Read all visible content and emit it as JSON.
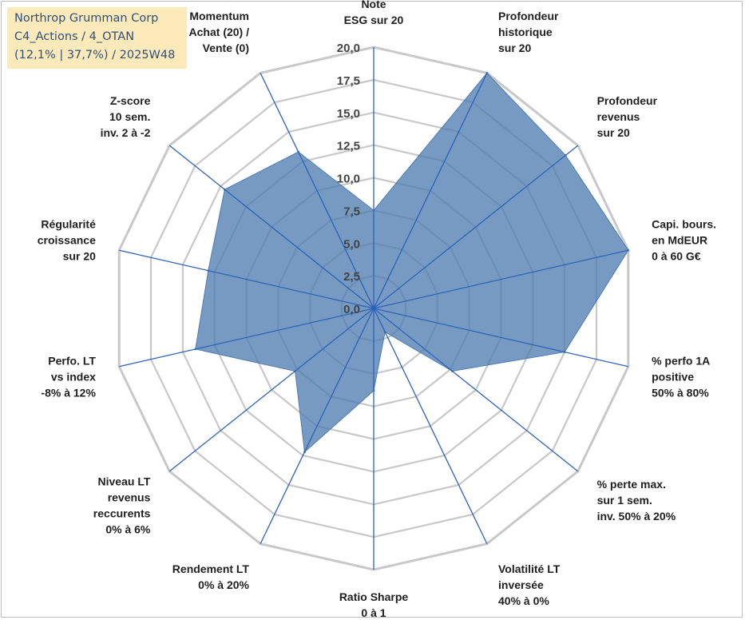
{
  "info": {
    "line1": "Northrop Grumman Corp",
    "line2": "C4_Actions / 4_OTAN",
    "line3": "(12,1% | 37,7%) / 2025W48"
  },
  "colors": {
    "fill": "#4f7db0",
    "axis": "#2e62b8",
    "grid": "#c8c8c8"
  },
  "chart_data": {
    "type": "radar",
    "title": "",
    "rmin": 0,
    "rmax": 20,
    "ticks": [
      0,
      2.5,
      5,
      7.5,
      10,
      12.5,
      15,
      17.5,
      20
    ],
    "tick_labels": [
      "0,0",
      "2,5",
      "5,0",
      "7,5",
      "10,0",
      "12,5",
      "15,0",
      "17,5",
      "20,0"
    ],
    "axes": [
      {
        "label": [
          "Note",
          "ESG sur 20"
        ],
        "value": 7.5
      },
      {
        "label": [
          "Profondeur",
          "historique",
          "sur 20"
        ],
        "value": 20
      },
      {
        "label": [
          "Profondeur",
          "revenus",
          "sur 20"
        ],
        "value": 18.8
      },
      {
        "label": [
          "Capi. bours.",
          "en MdEUR",
          "0 à 60 G€"
        ],
        "value": 20
      },
      {
        "label": [
          "% perfo 1A",
          "positive",
          "50% à 80%"
        ],
        "value": 15
      },
      {
        "label": [
          "% perte max.",
          "sur 1 sem.",
          "inv. 50% à 20%"
        ],
        "value": 7.7
      },
      {
        "label": [
          "Volatilité LT",
          "inversée",
          "40% à 0%"
        ],
        "value": 2.0
      },
      {
        "label": [
          "Ratio Sharpe",
          "0 à 1"
        ],
        "value": 6.3
      },
      {
        "label": [
          "Rendement LT",
          "0% à 20%"
        ],
        "value": 12.2
      },
      {
        "label": [
          "Niveau LT",
          "revenus",
          "reccurents",
          "0% à 6%"
        ],
        "value": 7.7
      },
      {
        "label": [
          "Perfo. LT",
          "vs index",
          "-8% à 12%"
        ],
        "value": 14.0
      },
      {
        "label": [
          "Régularité",
          "croissance",
          "sur 20"
        ],
        "value": 13.0
      },
      {
        "label": [
          "Z-score",
          "10 sem.",
          "inv. 2 à -2"
        ],
        "value": 14.6
      },
      {
        "label": [
          "Momentum",
          "Achat (20) /",
          "Vente (0)"
        ],
        "value": 13.3
      }
    ]
  }
}
